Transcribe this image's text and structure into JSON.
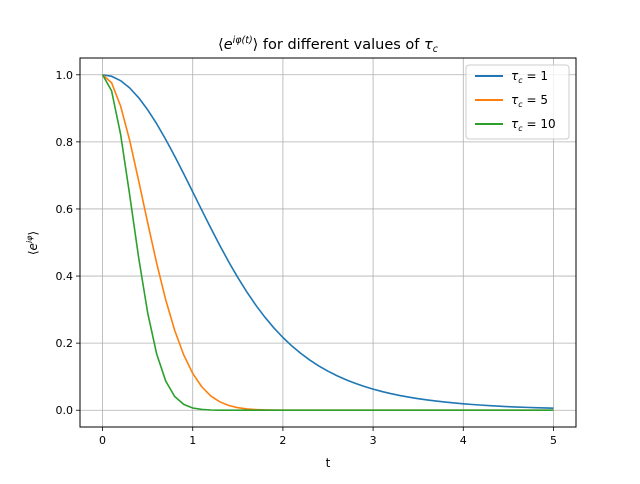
{
  "chart_data": {
    "type": "line",
    "title": "⟨e^{iφ(t)}⟩ for different values of τ_c",
    "xlabel": "t",
    "ylabel": "⟨e^{iφ}⟩",
    "xlim": [
      -0.25,
      5.25
    ],
    "ylim": [
      -0.05,
      1.05
    ],
    "xticks": [
      "0",
      "1",
      "2",
      "3",
      "4",
      "5"
    ],
    "yticks": [
      "0.0",
      "0.2",
      "0.4",
      "0.6",
      "0.8",
      "1.0"
    ],
    "grid": true,
    "legend_position": "top-right",
    "x": [
      0,
      0.1,
      0.2,
      0.3,
      0.4,
      0.5,
      0.6,
      0.7,
      0.8,
      0.9,
      1.0,
      1.1,
      1.2,
      1.3,
      1.4,
      1.5,
      1.6,
      1.7,
      1.8,
      1.9,
      2.0,
      2.1,
      2.2,
      2.3,
      2.4,
      2.5,
      2.6,
      2.7,
      2.8,
      2.9,
      3.0,
      3.1,
      3.2,
      3.3,
      3.4,
      3.5,
      3.6,
      3.7,
      3.8,
      3.9,
      4.0,
      4.1,
      4.2,
      4.3,
      4.4,
      4.5,
      4.6,
      4.7,
      4.8,
      4.9,
      5.0
    ],
    "series": [
      {
        "name": "τ_c = 1",
        "color": "#1f77b4",
        "values": [
          1.0,
          0.9955,
          0.9824,
          0.9609,
          0.9318,
          0.8957,
          0.8541,
          0.8073,
          0.7576,
          0.705,
          0.651,
          0.5967,
          0.5431,
          0.4913,
          0.4419,
          0.3955,
          0.3525,
          0.3131,
          0.2774,
          0.2453,
          0.2168,
          0.1914,
          0.169,
          0.1492,
          0.1317,
          0.1163,
          0.1028,
          0.0908,
          0.0803,
          0.071,
          0.0629,
          0.0557,
          0.0494,
          0.0438,
          0.0389,
          0.0345,
          0.0307,
          0.0273,
          0.0243,
          0.0216,
          0.0192,
          0.0171,
          0.0152,
          0.0135,
          0.012,
          0.0107,
          0.0095,
          0.0085,
          0.0076,
          0.0068,
          0.006
        ]
      },
      {
        "name": "τ_c = 5",
        "color": "#ff7f0e",
        "values": [
          1.0,
          0.9763,
          0.9069,
          0.8055,
          0.6847,
          0.5595,
          0.4383,
          0.3297,
          0.2381,
          0.1649,
          0.1097,
          0.07,
          0.0427,
          0.0251,
          0.0141,
          0.0076,
          0.0039,
          0.0019,
          0.0009,
          0.0004,
          0.0002,
          0.0001,
          0.0,
          0.0,
          0.0,
          0.0,
          0.0,
          0.0,
          0.0,
          0.0,
          0.0,
          0.0,
          0.0,
          0.0,
          0.0,
          0.0,
          0.0,
          0.0,
          0.0,
          0.0,
          0.0,
          0.0,
          0.0,
          0.0,
          0.0,
          0.0,
          0.0,
          0.0,
          0.0,
          0.0,
          0.0
        ]
      },
      {
        "name": "τ_c = 10",
        "color": "#2ca02c",
        "values": [
          1.0,
          0.9524,
          0.8228,
          0.6433,
          0.4555,
          0.2908,
          0.1679,
          0.0873,
          0.041,
          0.0174,
          0.0067,
          0.0023,
          0.0007,
          0.0002,
          0.0001,
          0.0,
          0.0,
          0.0,
          0.0,
          0.0,
          0.0,
          0.0,
          0.0,
          0.0,
          0.0,
          0.0,
          0.0,
          0.0,
          0.0,
          0.0,
          0.0,
          0.0,
          0.0,
          0.0,
          0.0,
          0.0,
          0.0,
          0.0,
          0.0,
          0.0,
          0.0,
          0.0,
          0.0,
          0.0,
          0.0,
          0.0,
          0.0,
          0.0,
          0.0,
          0.0,
          0.0
        ]
      }
    ]
  }
}
